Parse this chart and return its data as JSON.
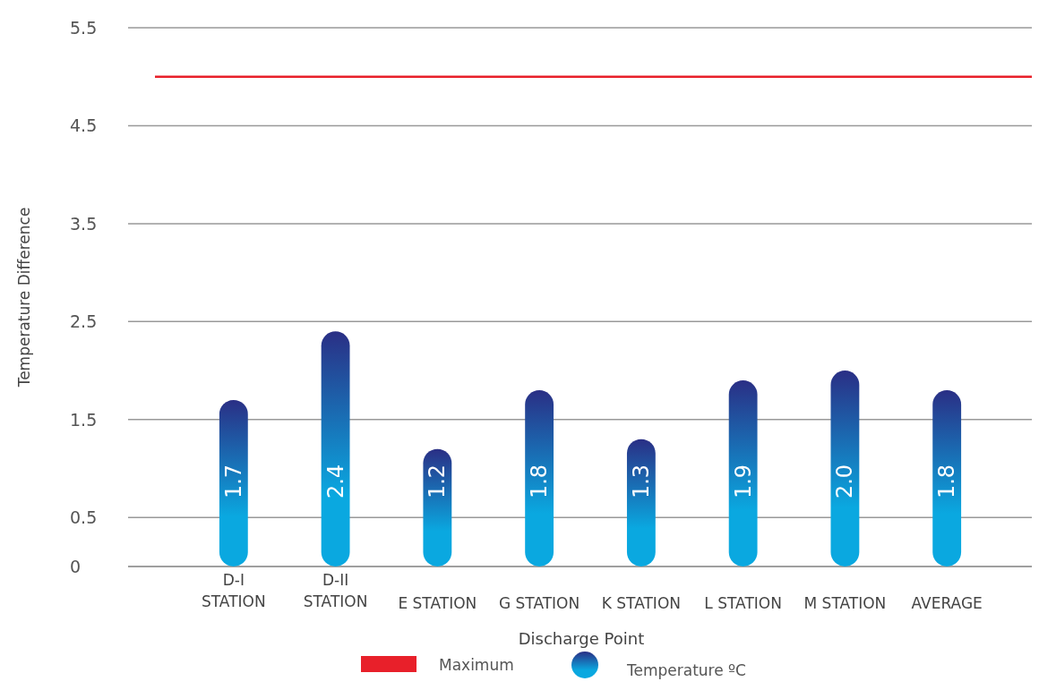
{
  "chart_data": {
    "type": "bar",
    "xlabel": "Discharge Point",
    "ylabel": "Temperature Difference",
    "categories": [
      "D-I\nSTATION",
      "D-II\nSTATION",
      "E STATION",
      "G STATION",
      "K STATION",
      "L STATION",
      "M STATION",
      "AVERAGE"
    ],
    "series": [
      {
        "name": "Temperature ºC",
        "color": "#0aa8e0",
        "values": [
          1.7,
          2.4,
          1.2,
          1.8,
          1.3,
          1.9,
          2.0,
          1.8
        ]
      }
    ],
    "value_labels": [
      "1.7",
      "2.4",
      "1.2",
      "1.8",
      "1.3",
      "1.9",
      "2.0",
      "1.8"
    ],
    "ylim": [
      0,
      5.5
    ],
    "yticks": [
      0,
      0.5,
      1.5,
      2.5,
      3.5,
      4.5,
      5.5
    ],
    "grid": "y",
    "ref_lines": [
      {
        "axis": "y",
        "value": 5,
        "label": "Maximum",
        "color": "#e8202a"
      }
    ],
    "legend": "bottom"
  }
}
